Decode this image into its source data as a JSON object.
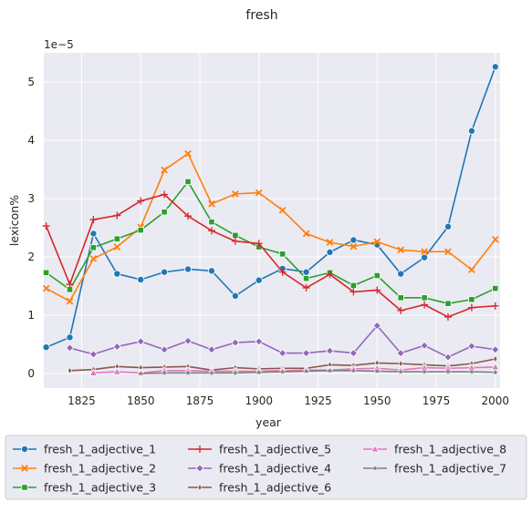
{
  "chart_data": {
    "type": "line",
    "title": "fresh",
    "xlabel": "year",
    "ylabel": "lexicon%",
    "y_offset_label": "1e−5",
    "xlim": [
      1809,
      2002
    ],
    "ylim": [
      -0.25,
      5.5
    ],
    "x_ticks": [
      1825,
      1850,
      1875,
      1900,
      1925,
      1950,
      1975,
      2000
    ],
    "x_tick_labels": [
      "1825",
      "1850",
      "1875",
      "1900",
      "1925",
      "1950",
      "1975",
      "2000"
    ],
    "y_ticks": [
      0,
      1,
      2,
      3,
      4,
      5
    ],
    "y_tick_labels": [
      "0",
      "1",
      "2",
      "3",
      "4",
      "5"
    ],
    "grid": true,
    "legend_position": "bottom",
    "series": [
      {
        "name": "fresh_1_adjective_1",
        "color": "#1f77b4",
        "marker": "circle",
        "x": [
          1810,
          1820,
          1830,
          1840,
          1850,
          1860,
          1870,
          1880,
          1890,
          1900,
          1910,
          1920,
          1930,
          1940,
          1950,
          1960,
          1970,
          1980,
          1990,
          2000
        ],
        "values": [
          0.45,
          0.62,
          2.4,
          1.71,
          1.61,
          1.74,
          1.79,
          1.76,
          1.33,
          1.6,
          1.8,
          1.74,
          2.08,
          2.29,
          2.21,
          1.71,
          1.99,
          2.52,
          4.16,
          5.26
        ]
      },
      {
        "name": "fresh_1_adjective_2",
        "color": "#ff7f0e",
        "marker": "x",
        "x": [
          1810,
          1820,
          1830,
          1840,
          1850,
          1860,
          1870,
          1880,
          1890,
          1900,
          1910,
          1920,
          1930,
          1940,
          1950,
          1960,
          1970,
          1980,
          1990,
          2000
        ],
        "values": [
          1.46,
          1.24,
          1.97,
          2.17,
          2.51,
          3.49,
          3.77,
          2.91,
          3.08,
          3.1,
          2.8,
          2.4,
          2.25,
          2.18,
          2.26,
          2.12,
          2.09,
          2.09,
          1.78,
          2.3
        ]
      },
      {
        "name": "fresh_1_adjective_3",
        "color": "#2ca02c",
        "marker": "square",
        "x": [
          1810,
          1820,
          1830,
          1840,
          1850,
          1860,
          1870,
          1880,
          1890,
          1900,
          1910,
          1920,
          1930,
          1940,
          1950,
          1960,
          1970,
          1980,
          1990,
          2000
        ],
        "values": [
          1.73,
          1.44,
          2.16,
          2.31,
          2.46,
          2.77,
          3.29,
          2.6,
          2.37,
          2.17,
          2.05,
          1.63,
          1.73,
          1.51,
          1.68,
          1.3,
          1.3,
          1.2,
          1.27,
          1.46
        ]
      },
      {
        "name": "fresh_1_adjective_5",
        "color": "#d62728",
        "marker": "plus",
        "x": [
          1810,
          1820,
          1830,
          1840,
          1850,
          1860,
          1870,
          1880,
          1890,
          1900,
          1910,
          1920,
          1930,
          1940,
          1950,
          1960,
          1970,
          1980,
          1990,
          2000
        ],
        "values": [
          2.53,
          1.53,
          2.64,
          2.71,
          2.96,
          3.07,
          2.7,
          2.45,
          2.27,
          2.23,
          1.74,
          1.47,
          1.7,
          1.4,
          1.43,
          1.08,
          1.18,
          0.97,
          1.13,
          1.16
        ]
      },
      {
        "name": "fresh_1_adjective_4",
        "color": "#9467bd",
        "marker": "diamond",
        "x": [
          1820,
          1830,
          1840,
          1850,
          1860,
          1870,
          1880,
          1890,
          1900,
          1910,
          1920,
          1930,
          1940,
          1950,
          1960,
          1970,
          1980,
          1990,
          2000
        ],
        "values": [
          0.44,
          0.33,
          0.46,
          0.55,
          0.41,
          0.56,
          0.41,
          0.53,
          0.55,
          0.35,
          0.35,
          0.39,
          0.35,
          0.82,
          0.35,
          0.48,
          0.28,
          0.47,
          0.41
        ]
      },
      {
        "name": "fresh_1_adjective_6",
        "color": "#8c564b",
        "marker": "thin_diamond",
        "x": [
          1820,
          1830,
          1840,
          1850,
          1860,
          1870,
          1880,
          1890,
          1900,
          1910,
          1920,
          1930,
          1940,
          1950,
          1960,
          1970,
          1980,
          1990,
          2000
        ],
        "values": [
          0.05,
          0.07,
          0.12,
          0.1,
          0.11,
          0.12,
          0.06,
          0.1,
          0.08,
          0.09,
          0.09,
          0.15,
          0.14,
          0.18,
          0.17,
          0.15,
          0.13,
          0.17,
          0.25
        ]
      },
      {
        "name": "fresh_1_adjective_8",
        "color": "#e377c2",
        "marker": "triangle",
        "x": [
          1830,
          1840,
          1850,
          1860,
          1870,
          1880,
          1890,
          1900,
          1910,
          1920,
          1930,
          1940,
          1950,
          1960,
          1970,
          1980,
          1990,
          2000
        ],
        "values": [
          0.01,
          0.03,
          0.01,
          0.05,
          0.05,
          0.04,
          0.04,
          0.04,
          0.05,
          0.06,
          0.06,
          0.08,
          0.09,
          0.06,
          0.1,
          0.09,
          0.1,
          0.11
        ]
      },
      {
        "name": "fresh_1_adjective_7",
        "color": "#7f7f7f",
        "marker": "star",
        "x": [
          1850,
          1860,
          1870,
          1880,
          1890,
          1900,
          1910,
          1920,
          1930,
          1940,
          1950,
          1960,
          1970,
          1980,
          1990,
          2000
        ],
        "values": [
          0.0,
          0.01,
          0.01,
          0.01,
          0.01,
          0.02,
          0.03,
          0.04,
          0.05,
          0.05,
          0.04,
          0.03,
          0.03,
          0.03,
          0.03,
          0.02
        ]
      }
    ],
    "legend_order": [
      "fresh_1_adjective_1",
      "fresh_1_adjective_2",
      "fresh_1_adjective_3",
      "fresh_1_adjective_5",
      "fresh_1_adjective_4",
      "fresh_1_adjective_6",
      "fresh_1_adjective_8",
      "fresh_1_adjective_7"
    ]
  }
}
